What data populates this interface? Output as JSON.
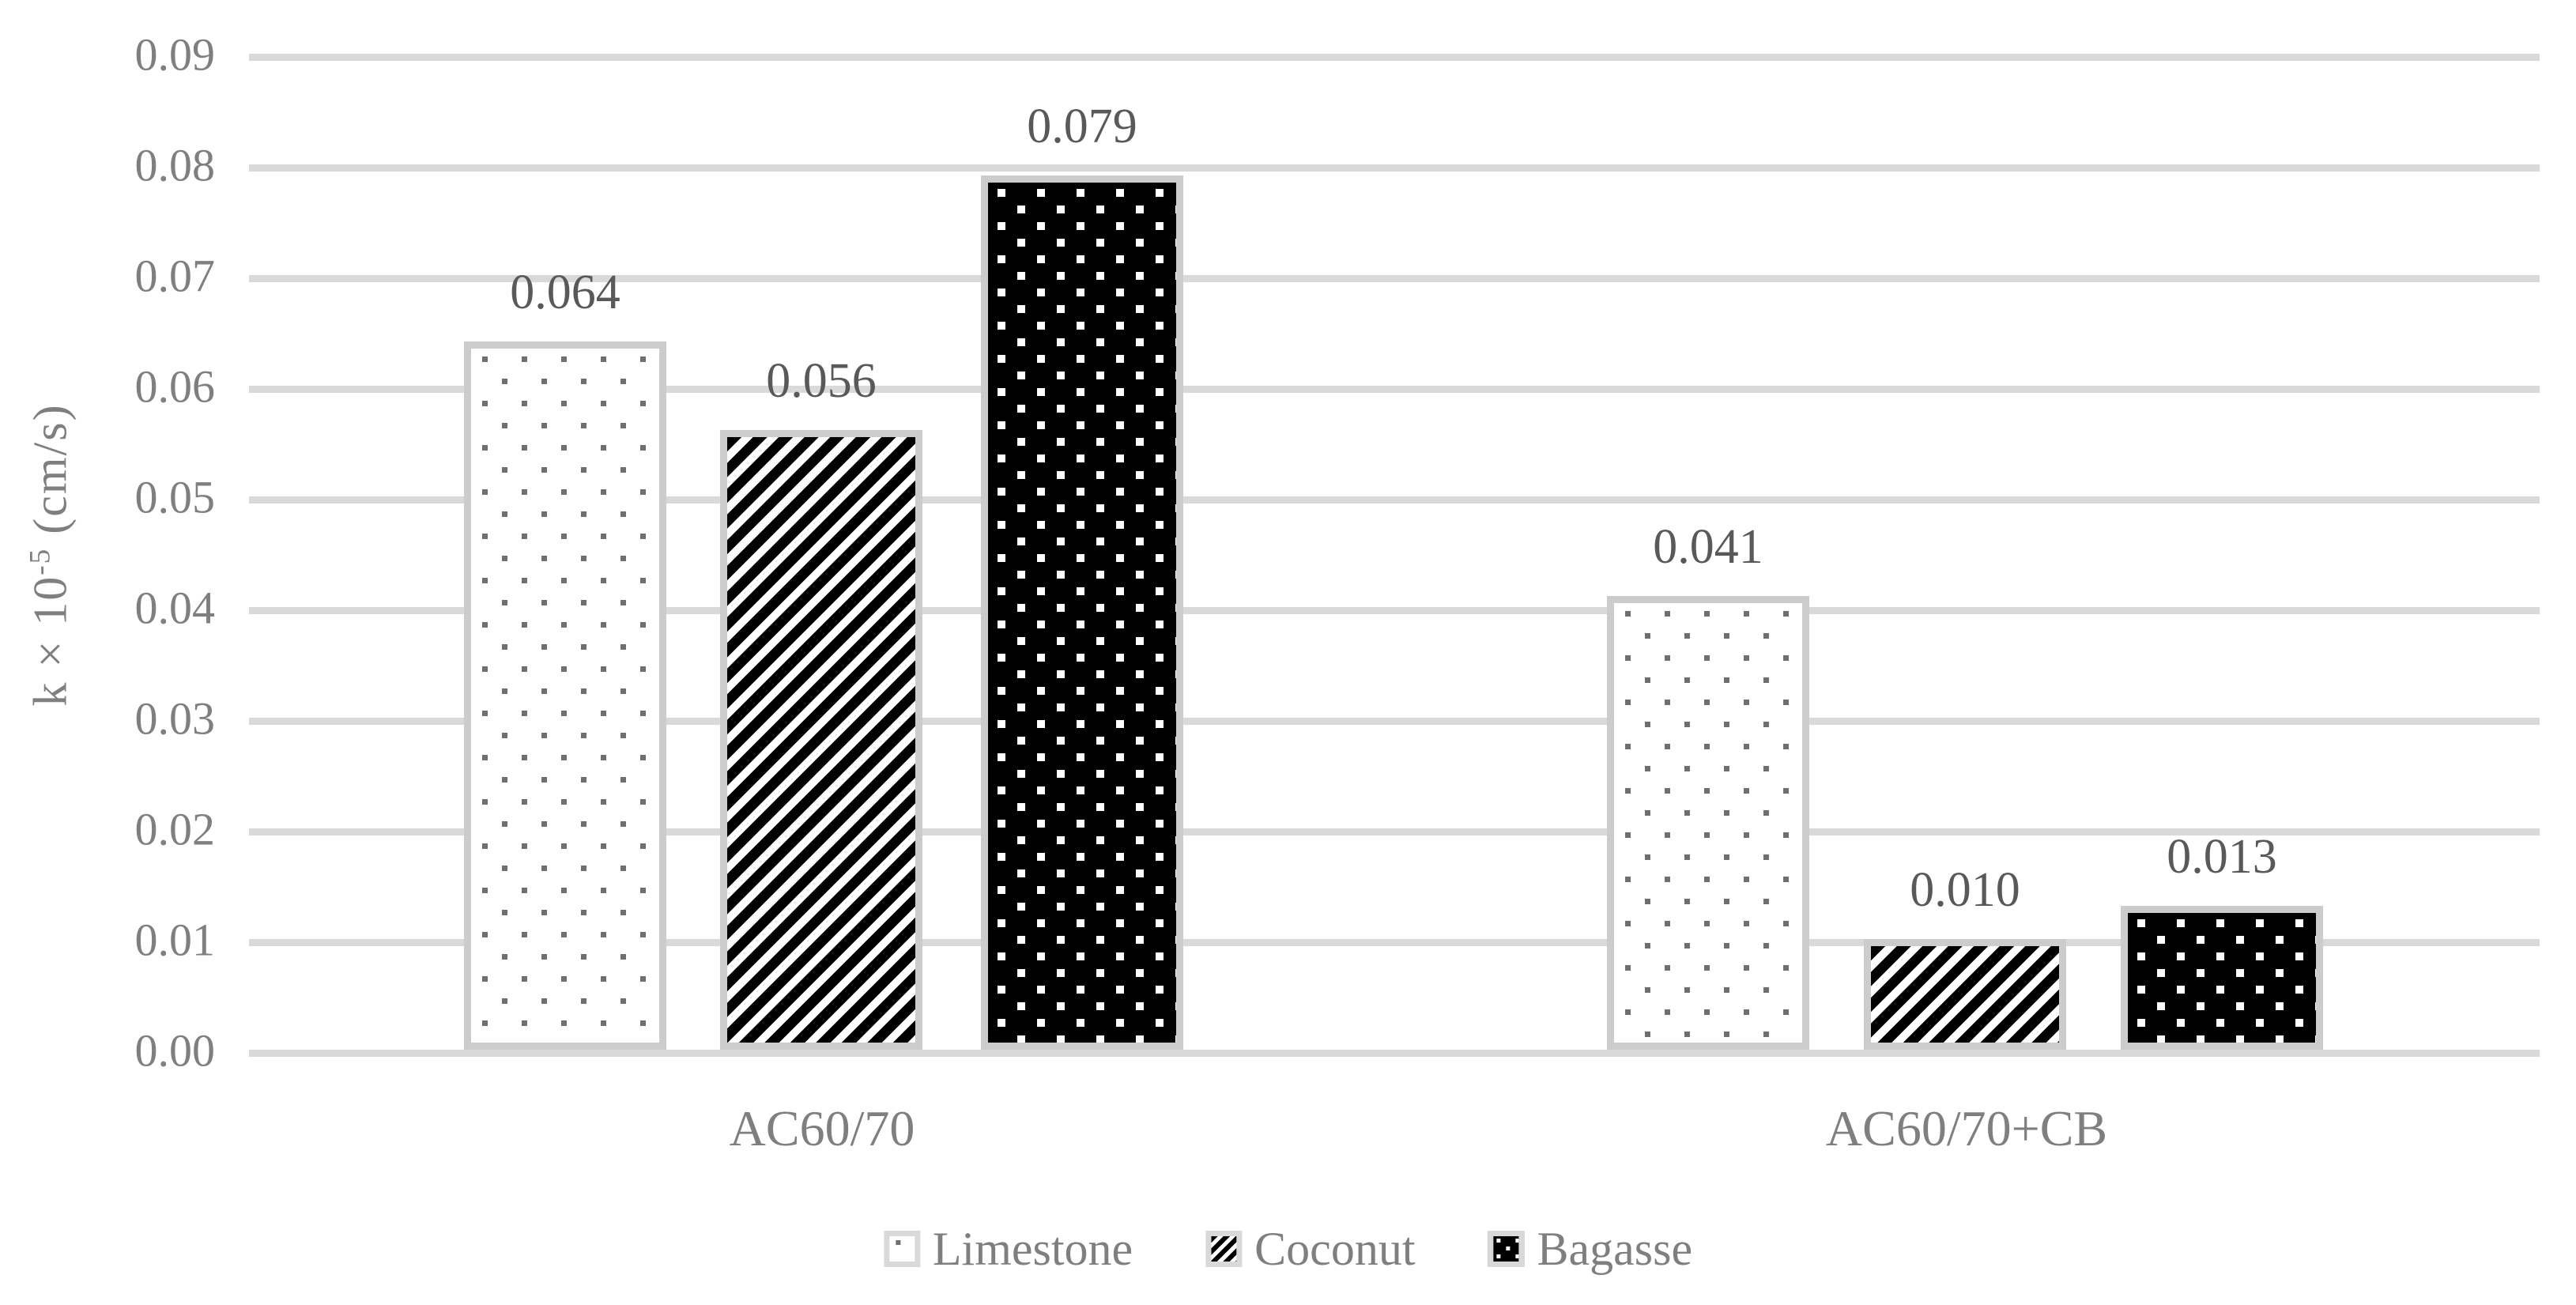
{
  "chart_data": {
    "type": "bar",
    "title": "",
    "categories": [
      "AC60/70",
      "AC60/70+CB"
    ],
    "series": [
      {
        "name": "Limestone",
        "values": [
          0.064,
          0.041
        ],
        "labels": [
          "0.064",
          "0.041"
        ],
        "pattern": "gray-dots-on-white"
      },
      {
        "name": "Coconut",
        "values": [
          0.056,
          0.01
        ],
        "labels": [
          "0.056",
          "0.010"
        ],
        "pattern": "black-diagonal-stripes"
      },
      {
        "name": "Bagasse",
        "values": [
          0.079,
          0.013
        ],
        "labels": [
          "0.079",
          "0.013"
        ],
        "pattern": "white-dots-on-black"
      }
    ],
    "xlabel": "",
    "ylabel": "k × 10⁻⁵ (cm/s)",
    "ylabel_parts": {
      "pre": "k × 10",
      "sup": "-5",
      "post": " (cm/s)"
    },
    "ylim": [
      0,
      0.09
    ],
    "ytick_step": 0.01,
    "yticks": [
      "0.00",
      "0.01",
      "0.02",
      "0.03",
      "0.04",
      "0.05",
      "0.06",
      "0.07",
      "0.08",
      "0.09"
    ],
    "grid": true,
    "legend_position": "bottom",
    "colors": {
      "gridline": "#d9d9d9",
      "bar_border": "#cccccc",
      "axis_text": "#7f7f7f",
      "data_label_text": "#595959",
      "limestone_dot": "#6f6f6f",
      "stripe_black": "#000000",
      "background": "#ffffff"
    }
  }
}
